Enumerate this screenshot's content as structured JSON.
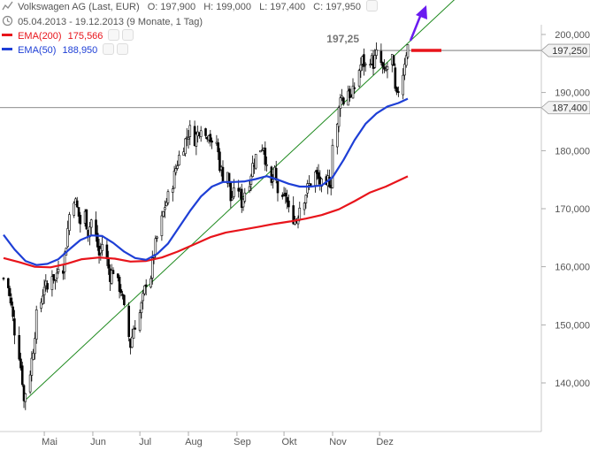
{
  "header": {
    "instrument": "Volkswagen AG (Last, EUR)",
    "open": "O: 197,900",
    "high": "H: 199,000",
    "low": "L: 197,400",
    "close": "C: 197,950",
    "period": "05.04.2013 - 19.12.2013 (9 Monate, 1 Tag)"
  },
  "indicators": [
    {
      "label": "EMA(200)",
      "value": "175,566",
      "color": "#e8141b"
    },
    {
      "label": "EMA(50)",
      "value": "188,950",
      "color": "#1e3fd6"
    }
  ],
  "colors": {
    "trendline": "#1f8a1f",
    "arrow": "#6a1bf0",
    "candles": "#000000",
    "marker": "#e8141b",
    "axis_text": "#555555",
    "hline": "#666666"
  },
  "chart_data": {
    "type": "candlestick",
    "y_ticks": [
      "140,000",
      "150,000",
      "160,000",
      "170,000",
      "180,000",
      "190,000",
      "200,000"
    ],
    "y_tick_values": [
      140,
      150,
      160,
      170,
      180,
      190,
      200
    ],
    "x_labels": [
      "Mai",
      "Jun",
      "Jul",
      "Aug",
      "Sep",
      "Okt",
      "Nov",
      "Dez"
    ],
    "x_label_dates": [
      "2013-05-01",
      "2013-06-01",
      "2013-07-01",
      "2013-08-01",
      "2013-09-01",
      "2013-10-01",
      "2013-11-01",
      "2013-12-01"
    ],
    "x_range": [
      "2013-04-05",
      "2013-12-19"
    ],
    "ylim": [
      134.5,
      201.5
    ],
    "price_path": [
      [
        "2013-04-05",
        158.0
      ],
      [
        "2013-04-08",
        156.5
      ],
      [
        "2013-04-10",
        153.0
      ],
      [
        "2013-04-12",
        149.0
      ],
      [
        "2013-04-15",
        145.0
      ],
      [
        "2013-04-17",
        140.5
      ],
      [
        "2013-04-18",
        136.8
      ],
      [
        "2013-04-19",
        138.5
      ],
      [
        "2013-04-22",
        142.0
      ],
      [
        "2013-04-24",
        146.0
      ],
      [
        "2013-04-26",
        151.5
      ],
      [
        "2013-04-29",
        154.0
      ],
      [
        "2013-05-01",
        157.0
      ],
      [
        "2013-05-03",
        156.0
      ],
      [
        "2013-05-06",
        159.0
      ],
      [
        "2013-05-08",
        157.5
      ],
      [
        "2013-05-10",
        160.5
      ],
      [
        "2013-05-13",
        160.0
      ],
      [
        "2013-05-15",
        164.0
      ],
      [
        "2013-05-17",
        169.0
      ],
      [
        "2013-05-20",
        172.0
      ],
      [
        "2013-05-22",
        170.0
      ],
      [
        "2013-05-24",
        167.5
      ],
      [
        "2013-05-27",
        169.0
      ],
      [
        "2013-05-29",
        166.0
      ],
      [
        "2013-05-31",
        168.0
      ],
      [
        "2013-06-03",
        165.0
      ],
      [
        "2013-06-05",
        162.0
      ],
      [
        "2013-06-07",
        164.0
      ],
      [
        "2013-06-10",
        161.0
      ],
      [
        "2013-06-12",
        158.5
      ],
      [
        "2013-06-14",
        159.5
      ],
      [
        "2013-06-17",
        157.0
      ],
      [
        "2013-06-19",
        156.0
      ],
      [
        "2013-06-21",
        152.5
      ],
      [
        "2013-06-24",
        148.0
      ],
      [
        "2013-06-25",
        146.5
      ],
      [
        "2013-06-27",
        149.5
      ],
      [
        "2013-07-01",
        152.0
      ],
      [
        "2013-07-03",
        154.5
      ],
      [
        "2013-07-05",
        157.5
      ],
      [
        "2013-07-08",
        158.5
      ],
      [
        "2013-07-10",
        162.5
      ],
      [
        "2013-07-12",
        165.0
      ],
      [
        "2013-07-15",
        168.0
      ],
      [
        "2013-07-17",
        170.5
      ],
      [
        "2013-07-19",
        172.0
      ],
      [
        "2013-07-22",
        174.5
      ],
      [
        "2013-07-24",
        177.0
      ],
      [
        "2013-07-26",
        179.0
      ],
      [
        "2013-07-29",
        181.0
      ],
      [
        "2013-07-31",
        182.5
      ],
      [
        "2013-08-02",
        183.5
      ],
      [
        "2013-08-05",
        182.0
      ],
      [
        "2013-08-07",
        183.0
      ],
      [
        "2013-08-09",
        184.5
      ],
      [
        "2013-08-12",
        182.5
      ],
      [
        "2013-08-14",
        183.5
      ],
      [
        "2013-08-16",
        180.5
      ],
      [
        "2013-08-19",
        181.5
      ],
      [
        "2013-08-21",
        177.5
      ],
      [
        "2013-08-23",
        175.5
      ],
      [
        "2013-08-26",
        176.5
      ],
      [
        "2013-08-28",
        171.5
      ],
      [
        "2013-08-30",
        172.5
      ],
      [
        "2013-09-02",
        173.5
      ],
      [
        "2013-09-04",
        171.0
      ],
      [
        "2013-09-06",
        173.0
      ],
      [
        "2013-09-09",
        175.0
      ],
      [
        "2013-09-11",
        177.5
      ],
      [
        "2013-09-13",
        179.0
      ],
      [
        "2013-09-16",
        180.5
      ],
      [
        "2013-09-18",
        181.0
      ],
      [
        "2013-09-20",
        176.5
      ],
      [
        "2013-09-23",
        174.0
      ],
      [
        "2013-09-25",
        176.0
      ],
      [
        "2013-09-27",
        173.0
      ],
      [
        "2013-09-30",
        171.0
      ],
      [
        "2013-10-02",
        172.5
      ],
      [
        "2013-10-04",
        169.5
      ],
      [
        "2013-10-07",
        168.5
      ],
      [
        "2013-10-09",
        168.0
      ],
      [
        "2013-10-11",
        170.5
      ],
      [
        "2013-10-14",
        172.0
      ],
      [
        "2013-10-16",
        173.5
      ],
      [
        "2013-10-18",
        174.5
      ],
      [
        "2013-10-21",
        176.0
      ],
      [
        "2013-10-23",
        175.0
      ],
      [
        "2013-10-25",
        174.0
      ],
      [
        "2013-10-28",
        173.0
      ],
      [
        "2013-10-29",
        175.0
      ],
      [
        "2013-10-31",
        174.5
      ],
      [
        "2013-11-01",
        181.0
      ],
      [
        "2013-11-04",
        184.0
      ],
      [
        "2013-11-05",
        187.0
      ],
      [
        "2013-11-06",
        190.0
      ],
      [
        "2013-11-08",
        188.5
      ],
      [
        "2013-11-11",
        190.5
      ],
      [
        "2013-11-13",
        189.0
      ],
      [
        "2013-11-15",
        191.0
      ],
      [
        "2013-11-18",
        194.0
      ],
      [
        "2013-11-20",
        195.5
      ],
      [
        "2013-11-22",
        194.5
      ],
      [
        "2013-11-25",
        196.0
      ],
      [
        "2013-11-27",
        195.0
      ],
      [
        "2013-11-29",
        196.5
      ],
      [
        "2013-12-02",
        195.0
      ],
      [
        "2013-12-04",
        193.0
      ],
      [
        "2013-12-06",
        194.5
      ],
      [
        "2013-12-09",
        196.0
      ],
      [
        "2013-12-10",
        193.5
      ],
      [
        "2013-12-11",
        190.0
      ],
      [
        "2013-12-12",
        189.0
      ],
      [
        "2013-12-13",
        190.5
      ],
      [
        "2013-12-16",
        193.5
      ],
      [
        "2013-12-17",
        195.5
      ],
      [
        "2013-12-18",
        197.0
      ],
      [
        "2013-12-19",
        197.95
      ]
    ],
    "series": [
      {
        "name": "EMA(200)",
        "color": "#e8141b",
        "points": [
          [
            "2013-04-05",
            161.5
          ],
          [
            "2013-04-15",
            160.8
          ],
          [
            "2013-04-25",
            160.0
          ],
          [
            "2013-05-05",
            159.9
          ],
          [
            "2013-05-15",
            160.5
          ],
          [
            "2013-05-25",
            161.3
          ],
          [
            "2013-06-05",
            161.6
          ],
          [
            "2013-06-15",
            161.4
          ],
          [
            "2013-06-25",
            160.9
          ],
          [
            "2013-07-05",
            161.0
          ],
          [
            "2013-07-15",
            161.6
          ],
          [
            "2013-07-25",
            162.6
          ],
          [
            "2013-08-05",
            163.9
          ],
          [
            "2013-08-15",
            165.1
          ],
          [
            "2013-08-25",
            165.9
          ],
          [
            "2013-09-05",
            166.4
          ],
          [
            "2013-09-15",
            166.9
          ],
          [
            "2013-09-25",
            167.4
          ],
          [
            "2013-10-05",
            167.8
          ],
          [
            "2013-10-15",
            168.3
          ],
          [
            "2013-10-25",
            168.9
          ],
          [
            "2013-11-05",
            169.9
          ],
          [
            "2013-11-15",
            171.3
          ],
          [
            "2013-11-25",
            172.8
          ],
          [
            "2013-12-05",
            173.8
          ],
          [
            "2013-12-19",
            175.566
          ]
        ]
      },
      {
        "name": "EMA(50)",
        "color": "#1e3fd6",
        "points": [
          [
            "2013-04-05",
            165.5
          ],
          [
            "2013-04-12",
            163.0
          ],
          [
            "2013-04-19",
            161.0
          ],
          [
            "2013-04-26",
            160.3
          ],
          [
            "2013-05-03",
            160.5
          ],
          [
            "2013-05-10",
            161.3
          ],
          [
            "2013-05-17",
            163.0
          ],
          [
            "2013-05-24",
            164.6
          ],
          [
            "2013-05-31",
            165.4
          ],
          [
            "2013-06-07",
            165.3
          ],
          [
            "2013-06-14",
            164.1
          ],
          [
            "2013-06-21",
            162.6
          ],
          [
            "2013-06-28",
            161.5
          ],
          [
            "2013-07-05",
            161.2
          ],
          [
            "2013-07-12",
            162.2
          ],
          [
            "2013-07-19",
            164.0
          ],
          [
            "2013-07-26",
            166.8
          ],
          [
            "2013-08-02",
            169.6
          ],
          [
            "2013-08-09",
            172.1
          ],
          [
            "2013-08-16",
            173.8
          ],
          [
            "2013-08-23",
            174.6
          ],
          [
            "2013-08-30",
            174.6
          ],
          [
            "2013-09-06",
            174.7
          ],
          [
            "2013-09-13",
            175.1
          ],
          [
            "2013-09-20",
            175.6
          ],
          [
            "2013-09-27",
            175.0
          ],
          [
            "2013-10-04",
            174.3
          ],
          [
            "2013-10-11",
            173.8
          ],
          [
            "2013-10-18",
            173.8
          ],
          [
            "2013-10-25",
            174.0
          ],
          [
            "2013-11-01",
            175.4
          ],
          [
            "2013-11-08",
            178.4
          ],
          [
            "2013-11-15",
            181.8
          ],
          [
            "2013-11-22",
            184.6
          ],
          [
            "2013-11-29",
            186.4
          ],
          [
            "2013-12-06",
            187.6
          ],
          [
            "2013-12-13",
            188.2
          ],
          [
            "2013-12-19",
            188.95
          ]
        ]
      }
    ],
    "trendline": [
      [
        "2013-04-18",
        136.8
      ],
      [
        "2013-12-19",
        198.5
      ]
    ],
    "horizontal_lines": [
      {
        "value": 197.25,
        "label": "197,250"
      },
      {
        "value": 187.4,
        "label": "187,400"
      }
    ],
    "annotations": [
      "197,25"
    ]
  }
}
